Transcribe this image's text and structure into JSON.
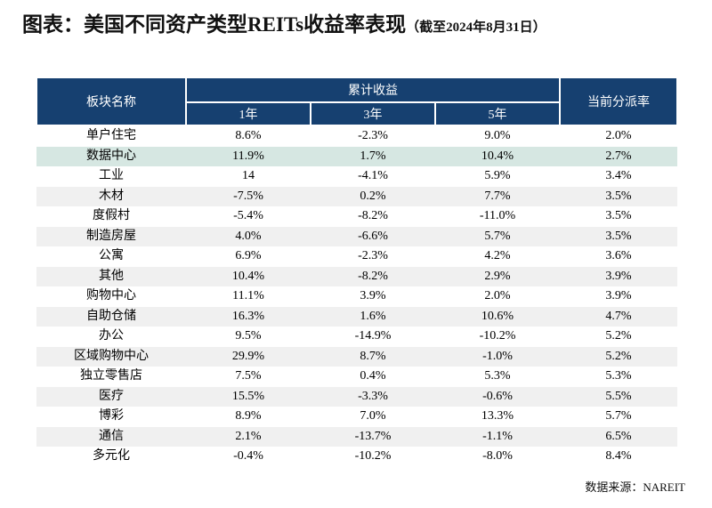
{
  "title": {
    "main": "图表：美国不同资产类型REITs收益率表现",
    "suffix": "（截至2024年8月31日）"
  },
  "table": {
    "header": {
      "sector": "板块名称",
      "cumulative_group": "累计收益",
      "periods": [
        "1年",
        "3年",
        "5年"
      ],
      "dividend": "当前分派率"
    },
    "highlight_row_index": 1
  },
  "chart_data": {
    "type": "table",
    "title": "美国不同资产类型REITs收益率表现（截至2024年8月31日）",
    "columns": [
      "板块名称",
      "累计收益 1年",
      "累计收益 3年",
      "累计收益 5年",
      "当前分派率"
    ],
    "rows": [
      [
        "单户住宅",
        "8.6%",
        "-2.3%",
        "9.0%",
        "2.0%"
      ],
      [
        "数据中心",
        "11.9%",
        "1.7%",
        "10.4%",
        "2.7%"
      ],
      [
        "工业",
        "14",
        "-4.1%",
        "5.9%",
        "3.4%"
      ],
      [
        "木材",
        "-7.5%",
        "0.2%",
        "7.7%",
        "3.5%"
      ],
      [
        "度假村",
        "-5.4%",
        "-8.2%",
        "-11.0%",
        "3.5%"
      ],
      [
        "制造房屋",
        "4.0%",
        "-6.6%",
        "5.7%",
        "3.5%"
      ],
      [
        "公寓",
        "6.9%",
        "-2.3%",
        "4.2%",
        "3.6%"
      ],
      [
        "其他",
        "10.4%",
        "-8.2%",
        "2.9%",
        "3.9%"
      ],
      [
        "购物中心",
        "11.1%",
        "3.9%",
        "2.0%",
        "3.9%"
      ],
      [
        "自助仓储",
        "16.3%",
        "1.6%",
        "10.6%",
        "4.7%"
      ],
      [
        "办公",
        "9.5%",
        "-14.9%",
        "-10.2%",
        "5.2%"
      ],
      [
        "区域购物中心",
        "29.9%",
        "8.7%",
        "-1.0%",
        "5.2%"
      ],
      [
        "独立零售店",
        "7.5%",
        "0.4%",
        "5.3%",
        "5.3%"
      ],
      [
        "医疗",
        "15.5%",
        "-3.3%",
        "-0.6%",
        "5.5%"
      ],
      [
        "博彩",
        "8.9%",
        "7.0%",
        "13.3%",
        "5.7%"
      ],
      [
        "通信",
        "2.1%",
        "-13.7%",
        "-1.1%",
        "6.5%"
      ],
      [
        "多元化",
        "-0.4%",
        "-10.2%",
        "-8.0%",
        "8.4%"
      ]
    ],
    "highlighted_row": "数据中心"
  },
  "footer": {
    "source": "数据来源：NAREIT"
  },
  "colors": {
    "header_bg": "#164070",
    "header_text": "#FFFFFF",
    "highlight_row_bg": "#D6E7E2",
    "stripe_row_bg": "#F0F0F0",
    "body_text": "#000000"
  }
}
